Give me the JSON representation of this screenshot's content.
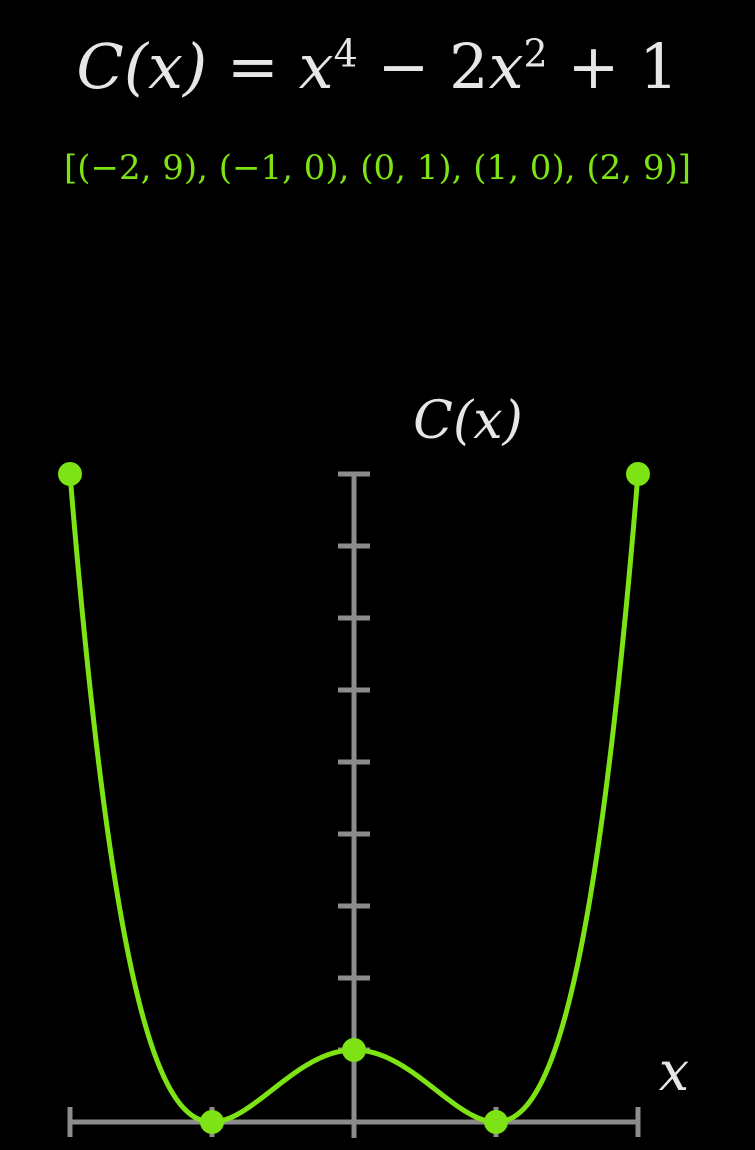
{
  "equation": {
    "lhs": "C(x)",
    "equals": "=",
    "t1_base": "x",
    "t1_exp": "4",
    "t2_coef": "− 2",
    "t2_base": "x",
    "t2_exp": "2",
    "t3": "+ 1"
  },
  "points_label": "[(−2, 9), (−1, 0), (0, 1), (1, 0), (2, 9)]",
  "colors": {
    "background": "#000000",
    "text": "#e6e6e6",
    "curve": "#7ee314",
    "axes": "#8c8c8c"
  },
  "chart_data": {
    "type": "line",
    "xlabel": "x",
    "ylabel": "C(x)",
    "xlim": [
      -2,
      2
    ],
    "ylim": [
      0,
      9
    ],
    "grid": false,
    "y_ticks": [
      1,
      2,
      3,
      4,
      5,
      6,
      7,
      8,
      9
    ],
    "x_ticks": [
      -2,
      -1,
      0,
      1,
      2
    ],
    "points": [
      {
        "x": -2,
        "y": 9
      },
      {
        "x": -1,
        "y": 0
      },
      {
        "x": 0,
        "y": 1
      },
      {
        "x": 1,
        "y": 0
      },
      {
        "x": 2,
        "y": 9
      }
    ]
  }
}
